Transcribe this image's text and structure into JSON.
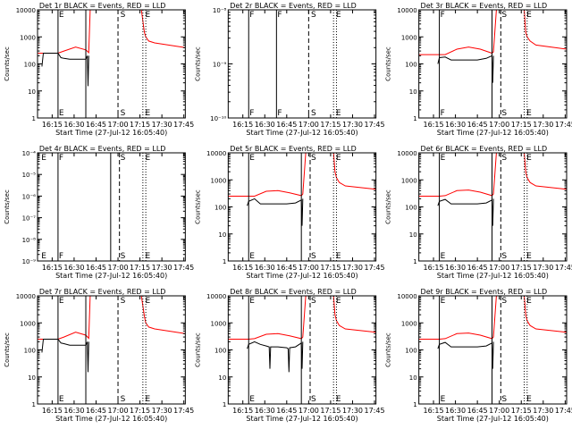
{
  "figure": {
    "xticks": [
      "16:15",
      "16:30",
      "16:45",
      "17:00",
      "17:15",
      "17:30",
      "17:45"
    ],
    "xlabel": "Start Time (27-Jul-12 16:05:40)",
    "ylabel": "Counts/sec",
    "colors": {
      "events": "#000000",
      "lld": "#ff0000",
      "axes": "#000000"
    }
  },
  "chart_data": [
    {
      "id": "det1",
      "title": "Det 1r BLACK = Events, RED = LLD",
      "type": "line",
      "yscale": "log",
      "ylim": [
        1,
        10000
      ],
      "yticks": [
        "1",
        "10",
        "100",
        "1000",
        "10000"
      ],
      "xlim_min": [
        0,
        101
      ],
      "tick_min": [
        10,
        25,
        40,
        55,
        70,
        85,
        100
      ],
      "vlines": [
        {
          "t": 14,
          "style": "solid"
        },
        {
          "t": 33,
          "style": "solid"
        },
        {
          "t": 55,
          "style": "dashed"
        },
        {
          "t": 72,
          "style": "dotted"
        },
        {
          "t": 74,
          "style": "dotted"
        }
      ],
      "markers": [
        {
          "t": 14,
          "label": "E"
        },
        {
          "t": 56,
          "label": "S"
        },
        {
          "t": 73,
          "label": "E"
        }
      ],
      "series": [
        {
          "name": "LLD",
          "color": "#ff0000",
          "x": [
            0,
            14,
            18,
            26,
            33,
            35,
            36,
            38,
            54,
            55,
            57,
            60,
            70,
            71,
            73,
            74,
            76,
            80,
            101
          ],
          "y": [
            250,
            250,
            300,
            420,
            330,
            260,
            12000,
            12000,
            12000,
            12000,
            12000,
            12000,
            12000,
            12000,
            1500,
            1000,
            700,
            600,
            400
          ]
        },
        {
          "name": "Events",
          "color": "#000000",
          "x": [
            3,
            4,
            6,
            14,
            16,
            18,
            22,
            30,
            33,
            34,
            34.5,
            35
          ],
          "y": [
            80,
            250,
            250,
            250,
            170,
            160,
            150,
            150,
            150,
            200,
            15,
            200
          ]
        }
      ]
    },
    {
      "id": "det2",
      "title": "Det 2r BLACK = Events, RED = LLD",
      "type": "line",
      "yscale": "log",
      "ylim": [
        1e-10,
        1e-08
      ],
      "yticks": [
        "10⁻¹⁰",
        "10⁻⁹",
        "10⁻⁸"
      ],
      "xlim_min": [
        0,
        101
      ],
      "tick_min": [
        10,
        25,
        40,
        55,
        70,
        85,
        100
      ],
      "vlines": [
        {
          "t": 14,
          "style": "solid"
        },
        {
          "t": 33,
          "style": "solid"
        },
        {
          "t": 55,
          "style": "dashed"
        },
        {
          "t": 72,
          "style": "dotted"
        },
        {
          "t": 74,
          "style": "dotted"
        }
      ],
      "markers": [
        {
          "t": 14,
          "label": "F"
        },
        {
          "t": 33,
          "label": "F"
        },
        {
          "t": 56,
          "label": "S"
        },
        {
          "t": 73,
          "label": "E"
        }
      ],
      "series": []
    },
    {
      "id": "det3",
      "title": "Det 3r BLACK = Events, RED = LLD",
      "type": "line",
      "yscale": "log",
      "ylim": [
        1,
        10000
      ],
      "yticks": [
        "1",
        "10",
        "100",
        "1000",
        "10000"
      ],
      "xlim_min": [
        0,
        101
      ],
      "tick_min": [
        10,
        25,
        40,
        55,
        70,
        85,
        100
      ],
      "vlines": [
        {
          "t": 14,
          "style": "solid"
        },
        {
          "t": 50,
          "style": "solid"
        },
        {
          "t": 56,
          "style": "dashed"
        },
        {
          "t": 72,
          "style": "dotted"
        },
        {
          "t": 74,
          "style": "dotted"
        }
      ],
      "markers": [
        {
          "t": 14,
          "label": "F"
        },
        {
          "t": 56,
          "label": "S"
        },
        {
          "t": 73,
          "label": "E"
        }
      ],
      "series": [
        {
          "name": "LLD",
          "color": "#ff0000",
          "x": [
            0,
            14,
            18,
            26,
            34,
            42,
            50,
            51,
            53,
            55,
            71,
            72,
            73,
            74,
            76,
            80,
            101
          ],
          "y": [
            220,
            220,
            220,
            350,
            420,
            350,
            250,
            280,
            12000,
            12000,
            12000,
            12000,
            1500,
            1000,
            700,
            500,
            350
          ]
        },
        {
          "name": "Events",
          "color": "#000000",
          "x": [
            13,
            14,
            18,
            22,
            30,
            40,
            46,
            50,
            50.5,
            51
          ],
          "y": [
            100,
            170,
            180,
            140,
            140,
            140,
            160,
            200,
            20,
            200
          ]
        }
      ]
    },
    {
      "id": "det4",
      "title": "Det 4r BLACK = Events, RED = LLD",
      "type": "line",
      "yscale": "log",
      "ylim": [
        1e-09,
        0.0001
      ],
      "yticks": [
        "10⁻⁹",
        "10⁻⁸",
        "10⁻⁷",
        "10⁻⁶",
        "10⁻⁵",
        "10⁻⁴"
      ],
      "xlim_min": [
        0,
        101
      ],
      "tick_min": [
        10,
        25,
        40,
        55,
        70,
        85,
        100
      ],
      "vlines": [
        {
          "t": 14,
          "style": "solid"
        },
        {
          "t": 50,
          "style": "solid"
        },
        {
          "t": 56,
          "style": "dashed"
        },
        {
          "t": 72,
          "style": "dotted"
        },
        {
          "t": 74,
          "style": "dotted"
        }
      ],
      "markers": [
        {
          "t": 2,
          "label": "E"
        },
        {
          "t": 14,
          "label": "F"
        },
        {
          "t": 56,
          "label": "S"
        },
        {
          "t": 73,
          "label": "E"
        }
      ],
      "series": []
    },
    {
      "id": "det5",
      "title": "Det 5r BLACK = Events, RED = LLD",
      "type": "line",
      "yscale": "log",
      "ylim": [
        1,
        10000
      ],
      "yticks": [
        "1",
        "10",
        "100",
        "1000",
        "10000"
      ],
      "xlim_min": [
        0,
        101
      ],
      "tick_min": [
        10,
        25,
        40,
        55,
        70,
        85,
        100
      ],
      "vlines": [
        {
          "t": 14,
          "style": "solid"
        },
        {
          "t": 50,
          "style": "solid"
        },
        {
          "t": 56,
          "style": "dashed"
        },
        {
          "t": 72,
          "style": "dotted"
        },
        {
          "t": 74,
          "style": "dotted"
        }
      ],
      "markers": [
        {
          "t": 14,
          "label": "E"
        },
        {
          "t": 56,
          "label": "S"
        },
        {
          "t": 73,
          "label": "E"
        }
      ],
      "series": [
        {
          "name": "LLD",
          "color": "#ff0000",
          "x": [
            0,
            14,
            18,
            26,
            34,
            42,
            50,
            51,
            53,
            55,
            71,
            72,
            73,
            74,
            76,
            80,
            101
          ],
          "y": [
            250,
            250,
            250,
            380,
            400,
            330,
            260,
            300,
            12000,
            12000,
            12000,
            12000,
            2000,
            1200,
            800,
            600,
            450
          ]
        },
        {
          "name": "Events",
          "color": "#000000",
          "x": [
            13,
            14,
            18,
            22,
            30,
            40,
            46,
            50,
            50.5,
            51
          ],
          "y": [
            110,
            160,
            200,
            130,
            130,
            130,
            140,
            180,
            20,
            200
          ]
        }
      ]
    },
    {
      "id": "det6",
      "title": "Det 6r BLACK = Events, RED = LLD",
      "type": "line",
      "yscale": "log",
      "ylim": [
        1,
        10000
      ],
      "yticks": [
        "1",
        "10",
        "100",
        "1000",
        "10000"
      ],
      "xlim_min": [
        0,
        101
      ],
      "tick_min": [
        10,
        25,
        40,
        55,
        70,
        85,
        100
      ],
      "vlines": [
        {
          "t": 14,
          "style": "solid"
        },
        {
          "t": 50,
          "style": "solid"
        },
        {
          "t": 56,
          "style": "dashed"
        },
        {
          "t": 72,
          "style": "dotted"
        },
        {
          "t": 74,
          "style": "dotted"
        }
      ],
      "markers": [
        {
          "t": 14,
          "label": "E"
        },
        {
          "t": 56,
          "label": "S"
        },
        {
          "t": 73,
          "label": "E"
        }
      ],
      "series": [
        {
          "name": "LLD",
          "color": "#ff0000",
          "x": [
            0,
            14,
            18,
            26,
            34,
            42,
            50,
            51,
            53,
            55,
            71,
            72,
            73,
            74,
            76,
            80,
            101
          ],
          "y": [
            250,
            250,
            260,
            400,
            420,
            350,
            260,
            300,
            12000,
            12000,
            12000,
            12000,
            2000,
            1200,
            800,
            600,
            450
          ]
        },
        {
          "name": "Events",
          "color": "#000000",
          "x": [
            13,
            14,
            18,
            22,
            30,
            40,
            46,
            50,
            50.5,
            51
          ],
          "y": [
            110,
            160,
            190,
            130,
            130,
            130,
            140,
            180,
            20,
            200
          ]
        }
      ]
    },
    {
      "id": "det7",
      "title": "Det 7r BLACK = Events, RED = LLD",
      "type": "line",
      "yscale": "log",
      "ylim": [
        1,
        10000
      ],
      "yticks": [
        "1",
        "10",
        "100",
        "1000",
        "10000"
      ],
      "xlim_min": [
        0,
        101
      ],
      "tick_min": [
        10,
        25,
        40,
        55,
        70,
        85,
        100
      ],
      "vlines": [
        {
          "t": 14,
          "style": "solid"
        },
        {
          "t": 33,
          "style": "solid"
        },
        {
          "t": 55,
          "style": "dashed"
        },
        {
          "t": 72,
          "style": "dotted"
        },
        {
          "t": 74,
          "style": "dotted"
        }
      ],
      "markers": [
        {
          "t": 14,
          "label": "E"
        },
        {
          "t": 56,
          "label": "S"
        },
        {
          "t": 73,
          "label": "E"
        }
      ],
      "series": [
        {
          "name": "LLD",
          "color": "#ff0000",
          "x": [
            0,
            14,
            18,
            26,
            33,
            35,
            36,
            38,
            54,
            55,
            57,
            60,
            70,
            71,
            73,
            74,
            76,
            80,
            101
          ],
          "y": [
            250,
            250,
            300,
            450,
            350,
            270,
            12000,
            12000,
            12000,
            12000,
            12000,
            12000,
            12000,
            12000,
            1800,
            1000,
            700,
            600,
            400
          ]
        },
        {
          "name": "Events",
          "color": "#000000",
          "x": [
            3,
            4,
            6,
            14,
            16,
            18,
            22,
            30,
            33,
            34,
            34.5,
            35
          ],
          "y": [
            80,
            250,
            250,
            250,
            180,
            170,
            150,
            150,
            150,
            200,
            15,
            200
          ]
        }
      ]
    },
    {
      "id": "det8",
      "title": "Det 8r BLACK = Events, RED = LLD",
      "type": "line",
      "yscale": "log",
      "ylim": [
        1,
        10000
      ],
      "yticks": [
        "1",
        "10",
        "100",
        "1000",
        "10000"
      ],
      "xlim_min": [
        0,
        101
      ],
      "tick_min": [
        10,
        25,
        40,
        55,
        70,
        85,
        100
      ],
      "vlines": [
        {
          "t": 14,
          "style": "solid"
        },
        {
          "t": 50,
          "style": "solid"
        },
        {
          "t": 56,
          "style": "dashed"
        },
        {
          "t": 72,
          "style": "dotted"
        },
        {
          "t": 74,
          "style": "dotted"
        }
      ],
      "markers": [
        {
          "t": 14,
          "label": "E"
        },
        {
          "t": 56,
          "label": "S"
        },
        {
          "t": 73,
          "label": "E"
        }
      ],
      "series": [
        {
          "name": "LLD",
          "color": "#ff0000",
          "x": [
            0,
            14,
            18,
            26,
            34,
            42,
            50,
            51,
            53,
            55,
            71,
            72,
            73,
            74,
            76,
            80,
            101
          ],
          "y": [
            250,
            250,
            260,
            380,
            400,
            330,
            260,
            300,
            12000,
            12000,
            12000,
            12000,
            2000,
            1200,
            800,
            600,
            450
          ]
        },
        {
          "name": "Events",
          "color": "#000000",
          "x": [
            13,
            14,
            18,
            22,
            26,
            28,
            28.5,
            29,
            34,
            40,
            41,
            41.5,
            42,
            46,
            50,
            50.5,
            51
          ],
          "y": [
            110,
            160,
            200,
            160,
            140,
            130,
            20,
            130,
            130,
            120,
            110,
            15,
            120,
            130,
            180,
            20,
            200
          ]
        }
      ]
    },
    {
      "id": "det9",
      "title": "Det 9r BLACK = Events, RED = LLD",
      "type": "line",
      "yscale": "log",
      "ylim": [
        1,
        10000
      ],
      "yticks": [
        "1",
        "10",
        "100",
        "1000",
        "10000"
      ],
      "xlim_min": [
        0,
        101
      ],
      "tick_min": [
        10,
        25,
        40,
        55,
        70,
        85,
        100
      ],
      "vlines": [
        {
          "t": 14,
          "style": "solid"
        },
        {
          "t": 50,
          "style": "solid"
        },
        {
          "t": 56,
          "style": "dashed"
        },
        {
          "t": 72,
          "style": "dotted"
        },
        {
          "t": 74,
          "style": "dotted"
        }
      ],
      "markers": [
        {
          "t": 14,
          "label": "E"
        },
        {
          "t": 56,
          "label": "S"
        },
        {
          "t": 73,
          "label": "E"
        }
      ],
      "series": [
        {
          "name": "LLD",
          "color": "#ff0000",
          "x": [
            0,
            14,
            18,
            26,
            34,
            42,
            50,
            51,
            53,
            55,
            71,
            72,
            73,
            74,
            76,
            80,
            101
          ],
          "y": [
            250,
            250,
            260,
            400,
            420,
            350,
            260,
            300,
            12000,
            12000,
            12000,
            12000,
            2000,
            1200,
            800,
            600,
            450
          ]
        },
        {
          "name": "Events",
          "color": "#000000",
          "x": [
            13,
            14,
            18,
            22,
            30,
            40,
            46,
            50,
            50.5,
            51
          ],
          "y": [
            110,
            160,
            190,
            130,
            130,
            130,
            140,
            180,
            20,
            200
          ]
        }
      ]
    }
  ]
}
